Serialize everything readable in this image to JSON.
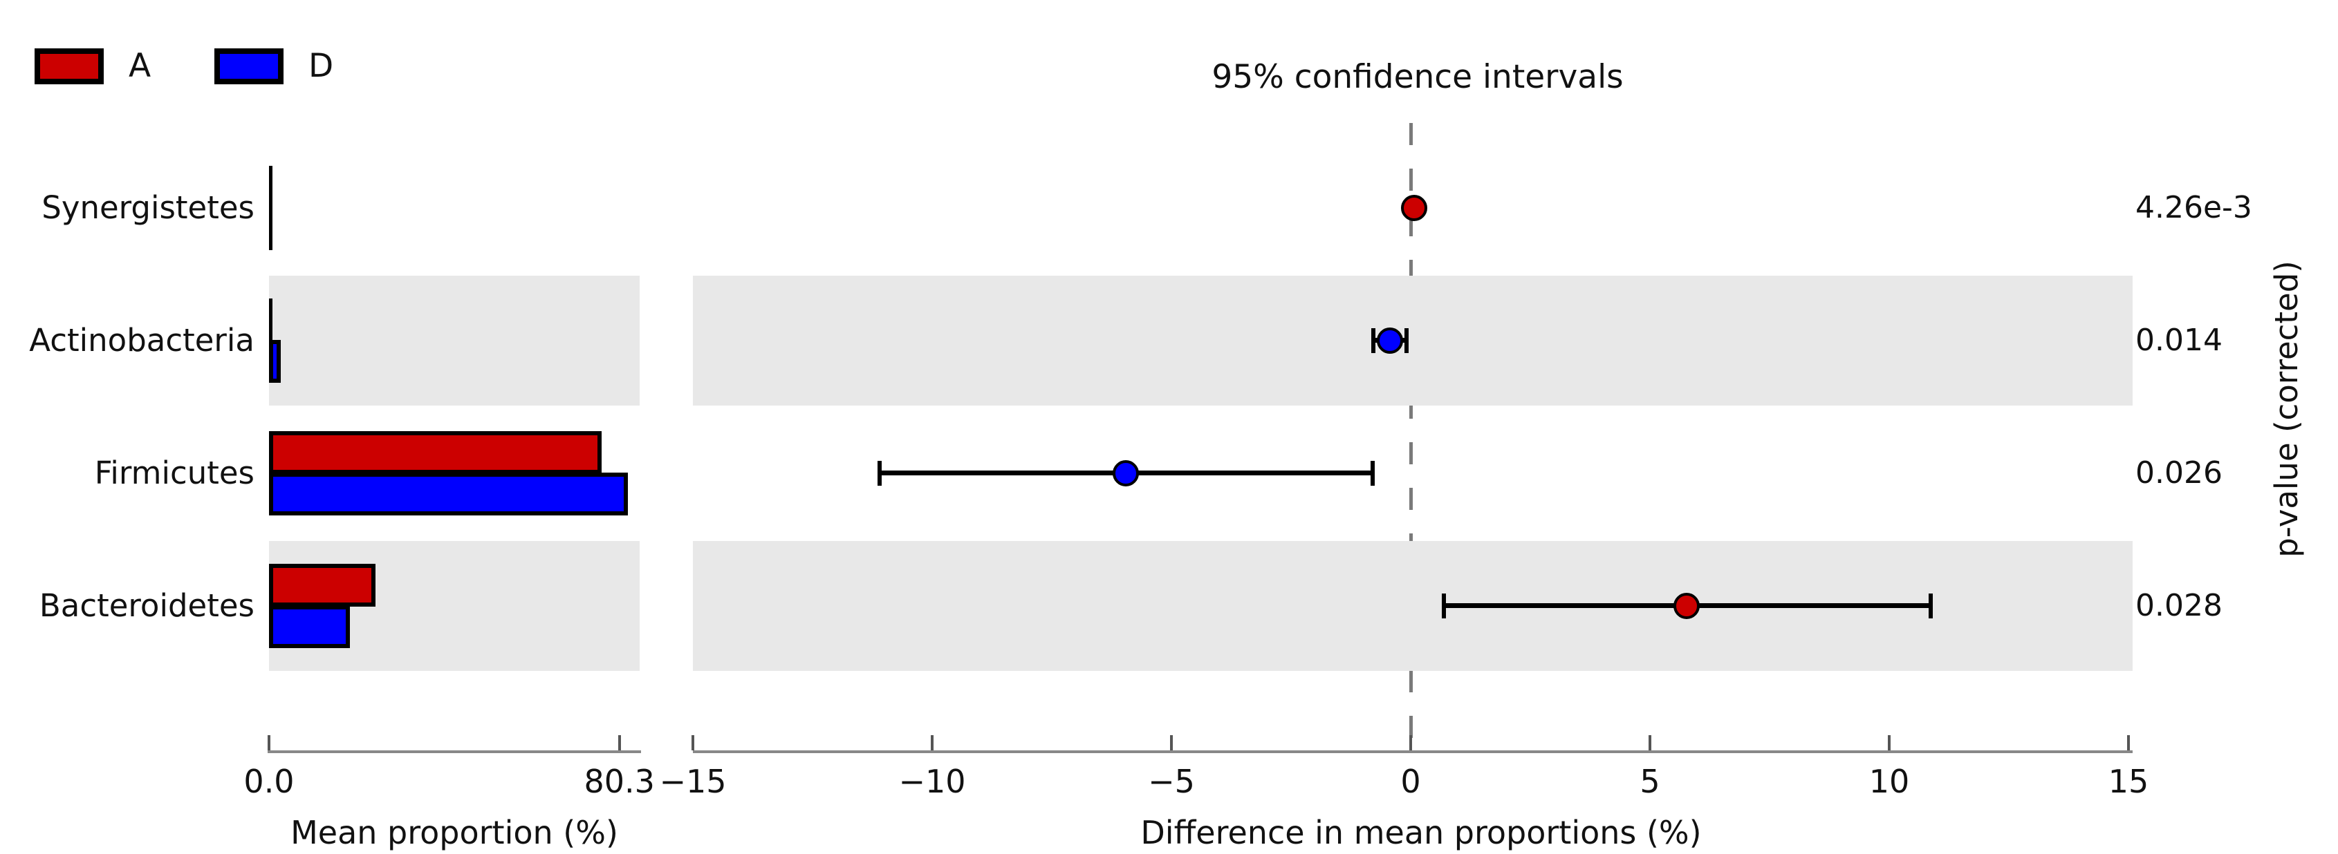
{
  "figure": {
    "title": "95% confidence intervals",
    "legend": [
      {
        "label": "A",
        "color": "#cc0000"
      },
      {
        "label": "D",
        "color": "#0000ff"
      }
    ],
    "left_axis": {
      "label": "Mean proportion (%)",
      "ticks": [
        {
          "label": "0.0",
          "value": 0
        },
        {
          "label": "80.3",
          "value": 80.3
        }
      ]
    },
    "right_axis": {
      "label": "Difference in mean proportions (%)",
      "ticks": [
        {
          "label": "−15",
          "value": -15
        },
        {
          "label": "−10",
          "value": -10
        },
        {
          "label": "−5",
          "value": -5
        },
        {
          "label": "0",
          "value": 0
        },
        {
          "label": "5",
          "value": 5
        },
        {
          "label": "10",
          "value": 10
        },
        {
          "label": "15",
          "value": 15
        }
      ]
    },
    "right_ylabel": "p-value (corrected)",
    "colors": {
      "red": "#cc0000",
      "blue": "#0000ff",
      "band": "#e8e8e8",
      "dash": "#7a7a7a",
      "axis": "#888888"
    }
  },
  "chart_data": {
    "type": "bar",
    "subtype": "extended-error-bar (paired bars + difference CI, STAMP style)",
    "title": "95% confidence intervals",
    "categories": [
      "Synergistetes",
      "Actinobacteria",
      "Firmicutes",
      "Bacteroidetes"
    ],
    "series": [
      {
        "name": "A",
        "color": "#cc0000",
        "values": [
          0.09,
          0.31,
          74.3,
          22.5
        ]
      },
      {
        "name": "D",
        "color": "#0000ff",
        "values": [
          0.02,
          0.74,
          80.3,
          16.6
        ]
      }
    ],
    "left_panel": {
      "xlabel": "Mean proportion (%)",
      "xlim": [
        0,
        80.3
      ],
      "tick_labels": [
        "0.0",
        "80.3"
      ]
    },
    "right_panel": {
      "xlabel": "Difference in mean proportions (%)",
      "xlim": [
        -15,
        15
      ],
      "tick_values": [
        -15,
        -10,
        -5,
        0,
        5,
        10,
        15
      ],
      "zero_line": "dashed",
      "points": [
        {
          "taxon": "Synergistetes",
          "diff": 0.07,
          "ci": [
            0.02,
            0.12
          ],
          "dot_color": "red",
          "shaded_row": false
        },
        {
          "taxon": "Actinobacteria",
          "diff": -0.43,
          "ci": [
            -0.78,
            -0.09
          ],
          "dot_color": "blue",
          "shaded_row": true
        },
        {
          "taxon": "Firmicutes",
          "diff": -5.95,
          "ci": [
            -11.1,
            -0.79
          ],
          "dot_color": "blue",
          "shaded_row": false
        },
        {
          "taxon": "Bacteroidetes",
          "diff": 5.77,
          "ci": [
            0.69,
            10.87
          ],
          "dot_color": "red",
          "shaded_row": true
        }
      ]
    },
    "p_values_corrected": [
      "4.26e-3",
      "0.014",
      "0.026",
      "0.028"
    ],
    "right_axis_label": "p-value (corrected)",
    "legend_position": "top-left",
    "grid": false
  }
}
